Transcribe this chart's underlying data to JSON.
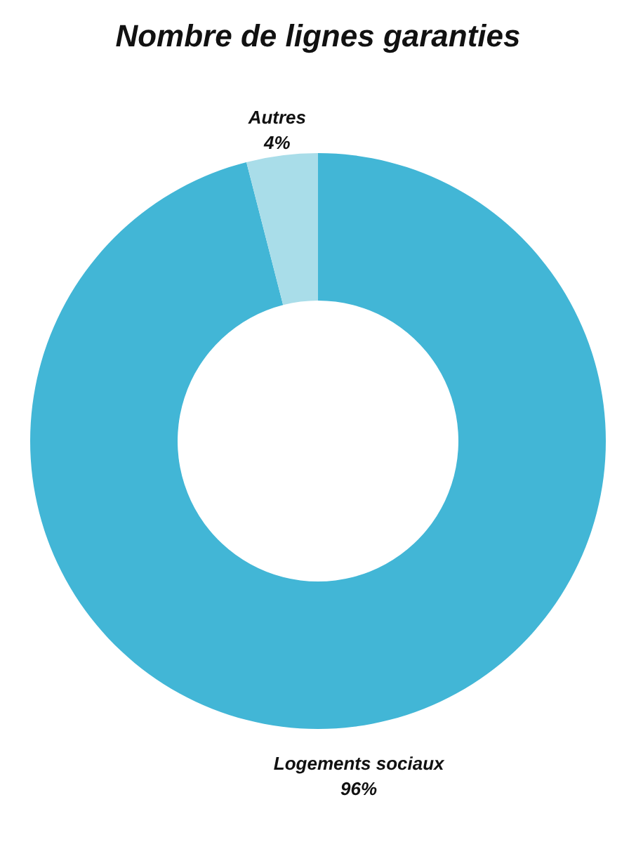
{
  "chart_data": {
    "type": "donut",
    "title": "Nombre de lignes garanties",
    "categories": [
      "Logements sociaux",
      "Autres"
    ],
    "values": [
      96,
      4
    ],
    "value_labels": [
      "96%",
      "4%"
    ],
    "colors": [
      "#42b6d6",
      "#a9dde9"
    ]
  }
}
